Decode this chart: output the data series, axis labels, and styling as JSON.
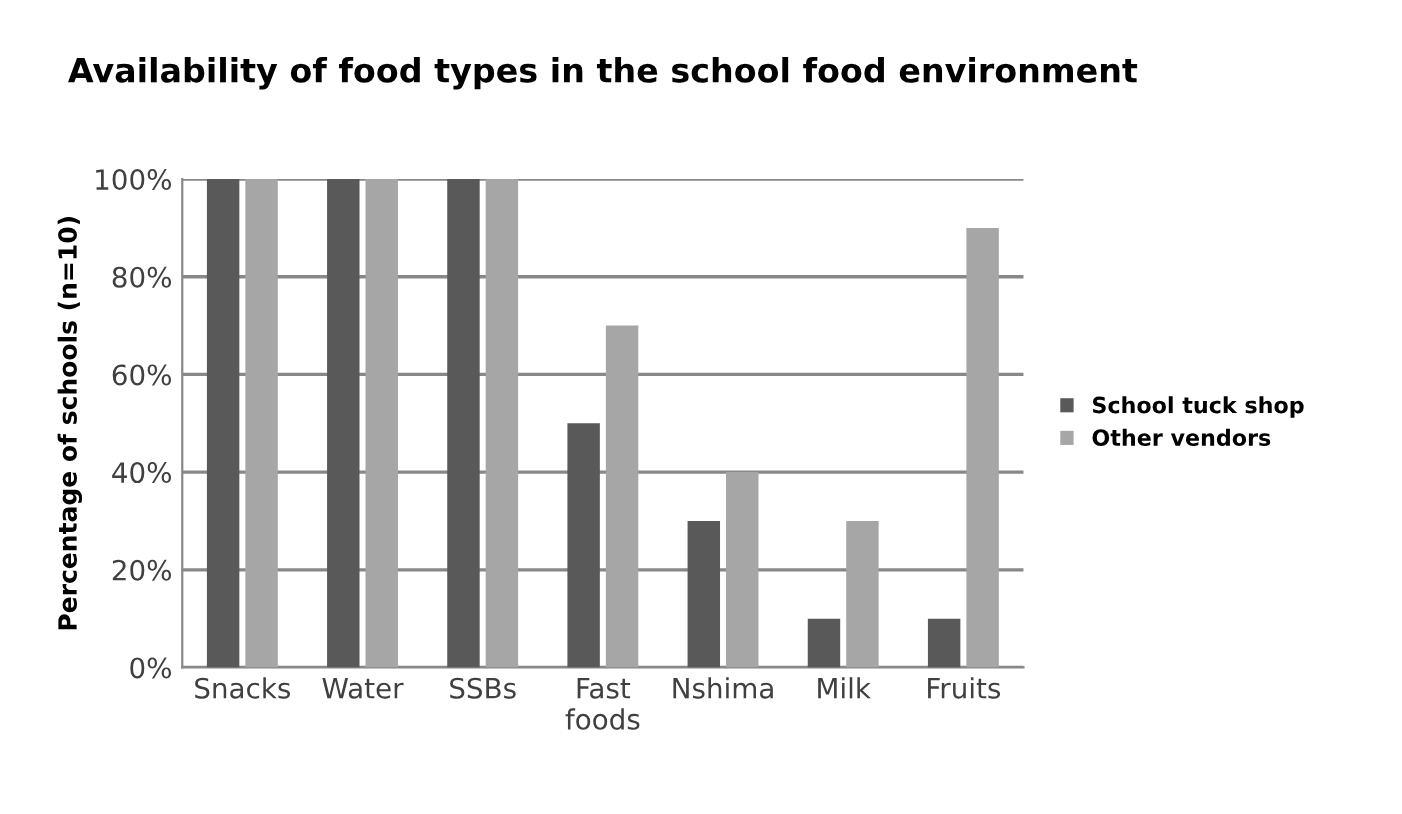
{
  "chart_data": {
    "type": "bar",
    "title": "Availability of food types in the school food environment",
    "ylabel": "Percentage of schools (n=10)",
    "categories": [
      "Snacks",
      "Water",
      "SSBs",
      "Fast\nfoods",
      "Nshima",
      "Milk",
      "Fruits"
    ],
    "series": [
      {
        "name": "School tuck shop",
        "color": "#595959",
        "values": [
          100,
          100,
          100,
          50,
          30,
          10,
          10
        ]
      },
      {
        "name": "Other vendors",
        "color": "#a6a6a6",
        "values": [
          100,
          100,
          100,
          70,
          40,
          30,
          90
        ]
      }
    ],
    "ylim": [
      0,
      100
    ],
    "yticks": [
      {
        "value": 0,
        "label": "0%"
      },
      {
        "value": 20,
        "label": "20%"
      },
      {
        "value": 40,
        "label": "40%"
      },
      {
        "value": 60,
        "label": "60%"
      },
      {
        "value": 80,
        "label": "80%"
      },
      {
        "value": 100,
        "label": "100%"
      }
    ],
    "grid": "y",
    "legend": "right"
  }
}
